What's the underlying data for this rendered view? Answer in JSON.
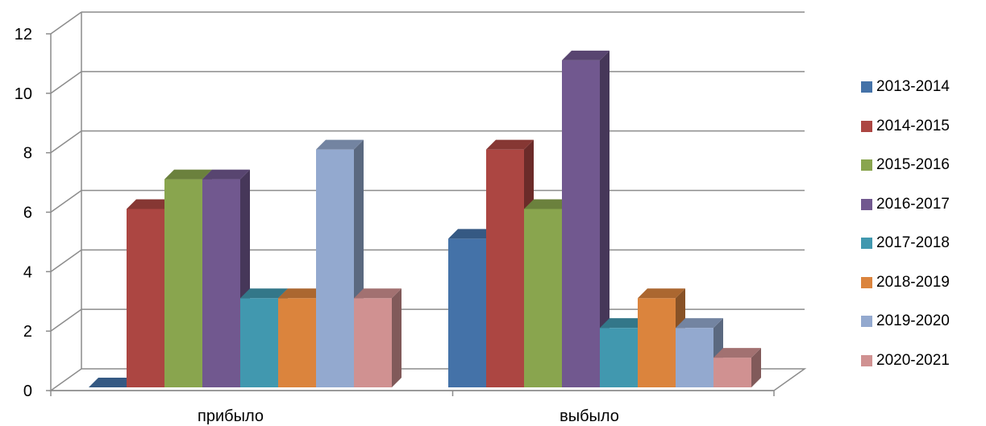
{
  "chart_data": {
    "type": "bar",
    "title": "",
    "xlabel": "",
    "ylabel": "",
    "categories": [
      "прибыло",
      "выбыло"
    ],
    "ylim": [
      0,
      12
    ],
    "yticks": [
      "0",
      "2",
      "4",
      "6",
      "8",
      "10",
      "12"
    ],
    "grid": true,
    "three_d": true,
    "legend_position": "right",
    "series": [
      {
        "name": "2013-2014",
        "color": "#4472A8",
        "values": [
          0,
          5
        ]
      },
      {
        "name": "2014-2015",
        "color": "#AC4642",
        "values": [
          6,
          8
        ]
      },
      {
        "name": "2015-2016",
        "color": "#89A54E",
        "values": [
          7,
          6
        ]
      },
      {
        "name": "2016-2017",
        "color": "#71588F",
        "values": [
          7,
          11
        ]
      },
      {
        "name": "2017-2018",
        "color": "#4198AF",
        "values": [
          3,
          2
        ]
      },
      {
        "name": "2018-2019",
        "color": "#DB843D",
        "values": [
          3,
          3
        ]
      },
      {
        "name": "2019-2020",
        "color": "#93A9CF",
        "values": [
          8,
          2
        ]
      },
      {
        "name": "2020-2021",
        "color": "#D09191",
        "values": [
          3,
          1
        ]
      }
    ]
  }
}
